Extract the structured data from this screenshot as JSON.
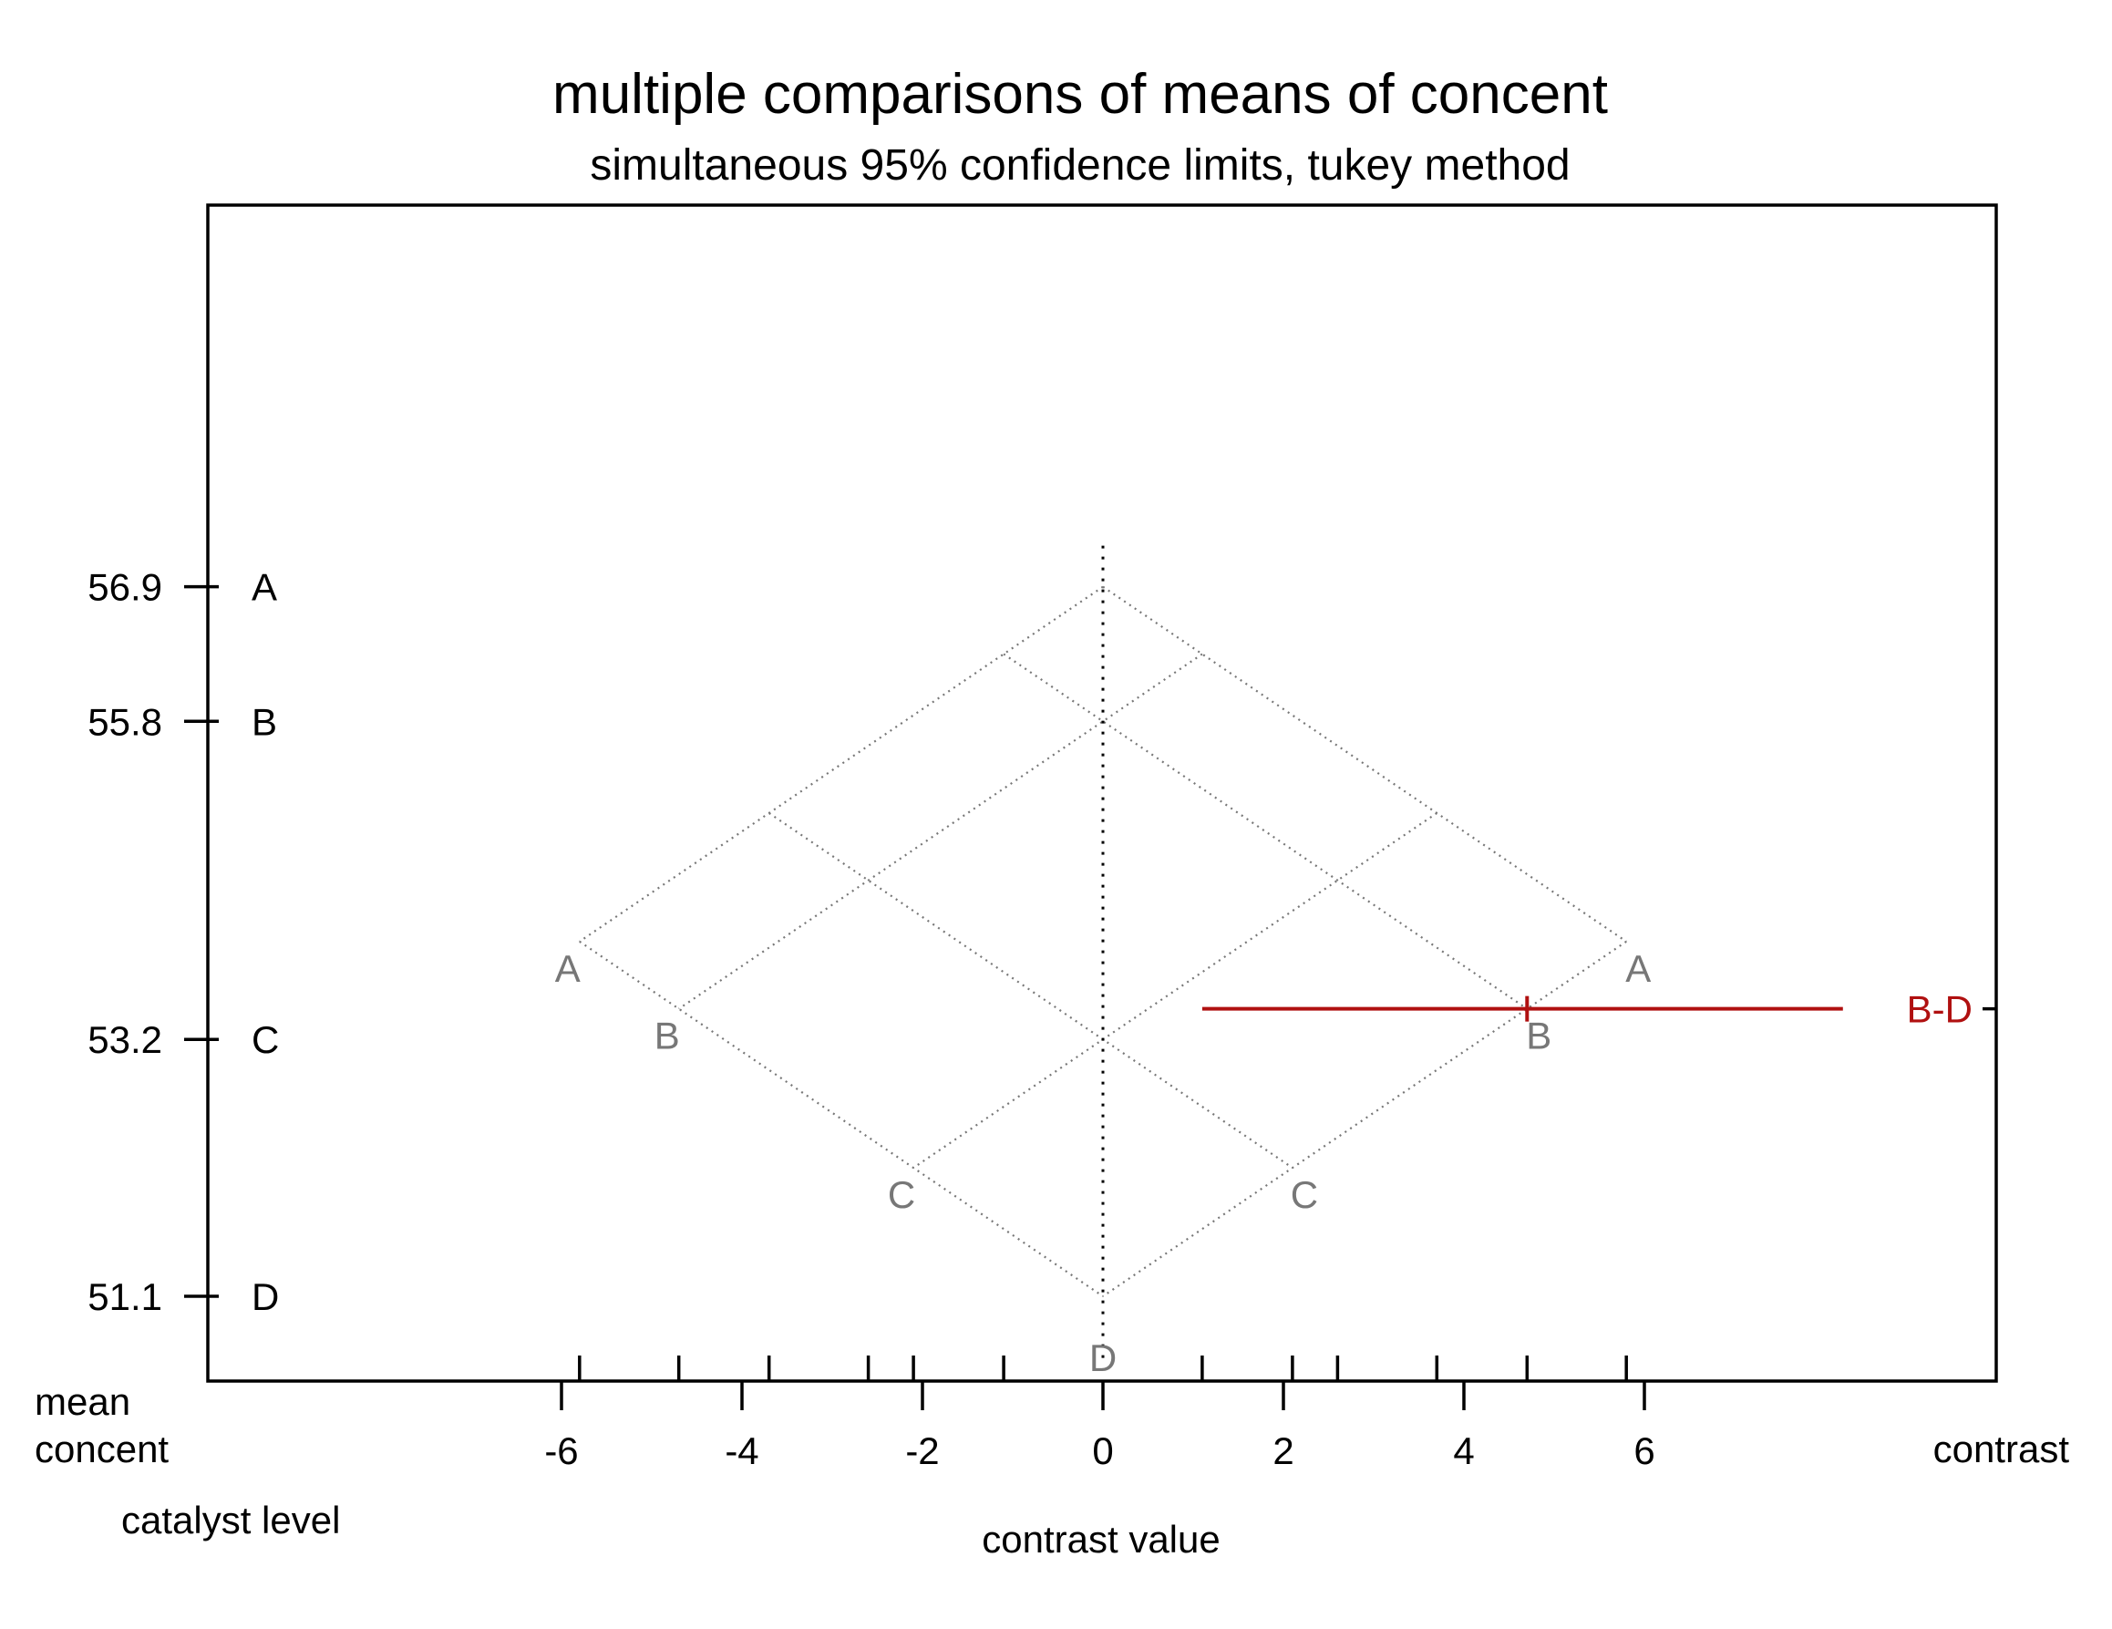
{
  "chart_data": {
    "type": "mean-mean multiple comparison",
    "title": "multiple comparisons of means of concent",
    "subtitle": "simultaneous 95% confidence limits, tukey method",
    "xlabel": "contrast value",
    "x_ticks": [
      -6,
      -4,
      -2,
      0,
      2,
      4,
      6
    ],
    "xlim": [
      -10,
      10
    ],
    "ylim": [
      50.6,
      57.4
    ],
    "left_axis_label": [
      "mean",
      "concent"
    ],
    "left_axis_sublabel": "catalyst level",
    "right_axis_label": "contrast",
    "levels": [
      {
        "name": "A",
        "mean": 56.9,
        "mean_label": "56.9"
      },
      {
        "name": "B",
        "mean": 55.8,
        "mean_label": "55.8"
      },
      {
        "name": "C",
        "mean": 53.2,
        "mean_label": "53.2"
      },
      {
        "name": "D",
        "mean": 51.1,
        "mean_label": "51.1"
      }
    ],
    "contrasts": [
      {
        "label": "B-D",
        "estimate": 4.7,
        "lower": 1.1,
        "upper": 8.2,
        "color": "#b01010"
      }
    ],
    "colors": {
      "grid": "#777777",
      "axis": "#000000",
      "contrast": "#b01010"
    }
  }
}
